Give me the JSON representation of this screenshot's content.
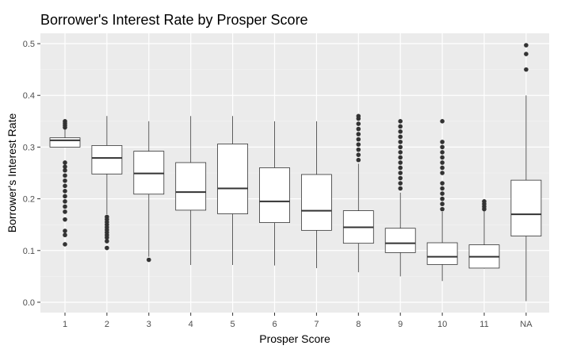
{
  "chart_data": {
    "type": "boxplot",
    "title": "Borrower's Interest Rate by Prosper Score",
    "xlabel": "Prosper Score",
    "ylabel": "Borrower's Interest Rate",
    "ylim": [
      -0.02,
      0.52
    ],
    "yticks": [
      "0.0",
      "0.1",
      "0.2",
      "0.3",
      "0.4",
      "0.5"
    ],
    "grid": true,
    "categories": [
      "1",
      "2",
      "3",
      "4",
      "5",
      "6",
      "7",
      "8",
      "9",
      "10",
      "11",
      "NA"
    ],
    "boxes": [
      {
        "min": 0.3,
        "q1": 0.3,
        "median": 0.313,
        "q3": 0.318,
        "max": 0.335,
        "outliers": [
          0.112,
          0.13,
          0.138,
          0.16,
          0.175,
          0.185,
          0.195,
          0.205,
          0.215,
          0.225,
          0.235,
          0.245,
          0.255,
          0.262,
          0.27,
          0.338,
          0.342,
          0.346,
          0.35
        ]
      },
      {
        "min": 0.17,
        "q1": 0.248,
        "median": 0.279,
        "q3": 0.303,
        "max": 0.36,
        "outliers": [
          0.105,
          0.118,
          0.125,
          0.13,
          0.135,
          0.14,
          0.145,
          0.15,
          0.155,
          0.16,
          0.165
        ]
      },
      {
        "min": 0.088,
        "q1": 0.209,
        "median": 0.249,
        "q3": 0.292,
        "max": 0.35,
        "outliers": [
          0.082
        ]
      },
      {
        "min": 0.072,
        "q1": 0.178,
        "median": 0.213,
        "q3": 0.27,
        "max": 0.36,
        "outliers": []
      },
      {
        "min": 0.072,
        "q1": 0.171,
        "median": 0.22,
        "q3": 0.306,
        "max": 0.36,
        "outliers": []
      },
      {
        "min": 0.071,
        "q1": 0.154,
        "median": 0.195,
        "q3": 0.26,
        "max": 0.35,
        "outliers": []
      },
      {
        "min": 0.066,
        "q1": 0.139,
        "median": 0.177,
        "q3": 0.247,
        "max": 0.35,
        "outliers": []
      },
      {
        "min": 0.058,
        "q1": 0.114,
        "median": 0.145,
        "q3": 0.177,
        "max": 0.268,
        "outliers": [
          0.275,
          0.285,
          0.295,
          0.305,
          0.315,
          0.325,
          0.335,
          0.345,
          0.355,
          0.36
        ]
      },
      {
        "min": 0.05,
        "q1": 0.096,
        "median": 0.114,
        "q3": 0.143,
        "max": 0.212,
        "outliers": [
          0.22,
          0.23,
          0.24,
          0.25,
          0.26,
          0.27,
          0.28,
          0.29,
          0.3,
          0.31,
          0.32,
          0.33,
          0.34,
          0.35
        ]
      },
      {
        "min": 0.041,
        "q1": 0.073,
        "median": 0.088,
        "q3": 0.115,
        "max": 0.175,
        "outliers": [
          0.18,
          0.19,
          0.2,
          0.21,
          0.22,
          0.23,
          0.25,
          0.26,
          0.27,
          0.28,
          0.29,
          0.3,
          0.31,
          0.35
        ]
      },
      {
        "min": 0.065,
        "q1": 0.066,
        "median": 0.088,
        "q3": 0.111,
        "max": 0.177,
        "outliers": [
          0.18,
          0.185,
          0.19,
          0.195
        ]
      },
      {
        "min": 0.002,
        "q1": 0.128,
        "median": 0.17,
        "q3": 0.236,
        "max": 0.4,
        "outliers": [
          0.45,
          0.48,
          0.497
        ]
      }
    ]
  }
}
